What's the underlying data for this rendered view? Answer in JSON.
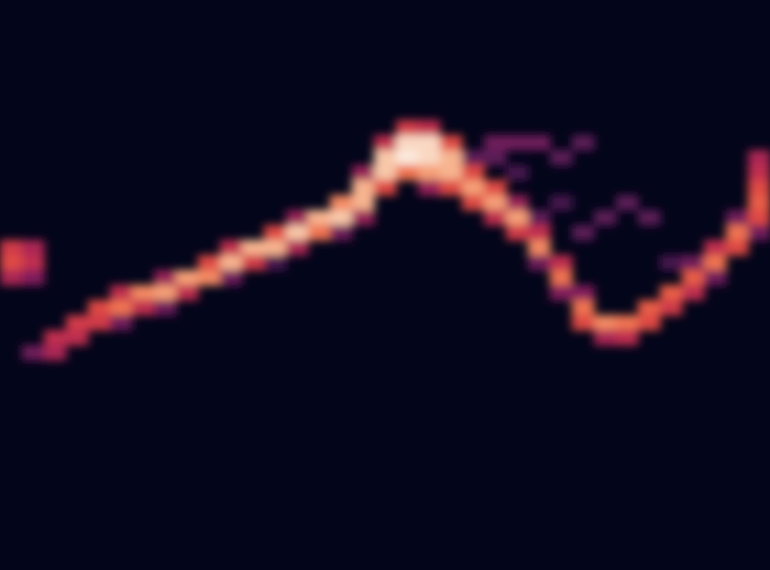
{
  "chart_data": {
    "type": "heatmap",
    "xlim": [
      0,
      35
    ],
    "ylim": [
      38,
      0
    ],
    "zlim": [
      0,
      1
    ],
    "tick_labels": false,
    "cells": [
      [
        0,
        16,
        0.55
      ],
      [
        0,
        17,
        0.6
      ],
      [
        0,
        18,
        0.45
      ],
      [
        1,
        16,
        0.45
      ],
      [
        1,
        17,
        0.5
      ],
      [
        1,
        18,
        0.35
      ],
      [
        1,
        23,
        0.3
      ],
      [
        2,
        22,
        0.5
      ],
      [
        2,
        23,
        0.45
      ],
      [
        3,
        21,
        0.55
      ],
      [
        3,
        22,
        0.5
      ],
      [
        4,
        20,
        0.6
      ],
      [
        4,
        21,
        0.55
      ],
      [
        5,
        19,
        0.5
      ],
      [
        5,
        20,
        0.7
      ],
      [
        5,
        21,
        0.3
      ],
      [
        6,
        19,
        0.75
      ],
      [
        6,
        20,
        0.5
      ],
      [
        7,
        18,
        0.4
      ],
      [
        7,
        19,
        0.8
      ],
      [
        7,
        20,
        0.3
      ],
      [
        8,
        18,
        0.8
      ],
      [
        8,
        19,
        0.5
      ],
      [
        9,
        17,
        0.6
      ],
      [
        9,
        18,
        0.75
      ],
      [
        10,
        16,
        0.5
      ],
      [
        10,
        17,
        0.85
      ],
      [
        10,
        18,
        0.3
      ],
      [
        11,
        16,
        0.85
      ],
      [
        11,
        17,
        0.55
      ],
      [
        12,
        15,
        0.6
      ],
      [
        12,
        16,
        0.85
      ],
      [
        12,
        17,
        0.2
      ],
      [
        13,
        14,
        0.4
      ],
      [
        13,
        15,
        0.9
      ],
      [
        13,
        16,
        0.45
      ],
      [
        14,
        14,
        0.85
      ],
      [
        14,
        15,
        0.7
      ],
      [
        15,
        13,
        0.75
      ],
      [
        15,
        14,
        0.9
      ],
      [
        15,
        15,
        0.3
      ],
      [
        16,
        11,
        0.4
      ],
      [
        16,
        12,
        0.85
      ],
      [
        16,
        13,
        0.85
      ],
      [
        16,
        14,
        0.4
      ],
      [
        17,
        9,
        0.5
      ],
      [
        17,
        10,
        0.9
      ],
      [
        17,
        11,
        0.9
      ],
      [
        17,
        12,
        0.6
      ],
      [
        18,
        8,
        0.55
      ],
      [
        18,
        9,
        0.95
      ],
      [
        18,
        10,
        1.0
      ],
      [
        18,
        11,
        0.7
      ],
      [
        19,
        8,
        0.5
      ],
      [
        19,
        9,
        0.95
      ],
      [
        19,
        10,
        0.95
      ],
      [
        19,
        11,
        0.8
      ],
      [
        19,
        12,
        0.4
      ],
      [
        20,
        9,
        0.6
      ],
      [
        20,
        10,
        0.85
      ],
      [
        20,
        11,
        0.85
      ],
      [
        20,
        12,
        0.6
      ],
      [
        21,
        10,
        0.25
      ],
      [
        21,
        11,
        0.6
      ],
      [
        21,
        12,
        0.8
      ],
      [
        21,
        13,
        0.6
      ],
      [
        22,
        9,
        0.3
      ],
      [
        22,
        10,
        0.25
      ],
      [
        22,
        12,
        0.6
      ],
      [
        22,
        13,
        0.8
      ],
      [
        22,
        14,
        0.5
      ],
      [
        23,
        9,
        0.3
      ],
      [
        23,
        11,
        0.2
      ],
      [
        23,
        13,
        0.4
      ],
      [
        23,
        14,
        0.8
      ],
      [
        23,
        15,
        0.55
      ],
      [
        24,
        9,
        0.3
      ],
      [
        24,
        14,
        0.25
      ],
      [
        24,
        15,
        0.5
      ],
      [
        24,
        16,
        0.75
      ],
      [
        24,
        17,
        0.3
      ],
      [
        25,
        10,
        0.25
      ],
      [
        25,
        13,
        0.2
      ],
      [
        25,
        17,
        0.5
      ],
      [
        25,
        18,
        0.7
      ],
      [
        25,
        19,
        0.35
      ],
      [
        26,
        9,
        0.25
      ],
      [
        26,
        15,
        0.25
      ],
      [
        26,
        19,
        0.35
      ],
      [
        26,
        20,
        0.7
      ],
      [
        26,
        21,
        0.6
      ],
      [
        27,
        14,
        0.25
      ],
      [
        27,
        21,
        0.75
      ],
      [
        27,
        22,
        0.45
      ],
      [
        28,
        13,
        0.25
      ],
      [
        28,
        21,
        0.7
      ],
      [
        28,
        22,
        0.5
      ],
      [
        29,
        14,
        0.25
      ],
      [
        29,
        20,
        0.65
      ],
      [
        29,
        21,
        0.6
      ],
      [
        30,
        17,
        0.2
      ],
      [
        30,
        19,
        0.65
      ],
      [
        30,
        20,
        0.55
      ],
      [
        31,
        17,
        0.3
      ],
      [
        31,
        18,
        0.65
      ],
      [
        31,
        19,
        0.5
      ],
      [
        32,
        16,
        0.5
      ],
      [
        32,
        17,
        0.7
      ],
      [
        32,
        18,
        0.3
      ],
      [
        33,
        14,
        0.3
      ],
      [
        33,
        15,
        0.7
      ],
      [
        33,
        16,
        0.6
      ],
      [
        34,
        10,
        0.45
      ],
      [
        34,
        11,
        0.5
      ],
      [
        34,
        12,
        0.6
      ],
      [
        34,
        13,
        0.65
      ],
      [
        34,
        14,
        0.6
      ],
      [
        34,
        15,
        0.3
      ]
    ]
  }
}
